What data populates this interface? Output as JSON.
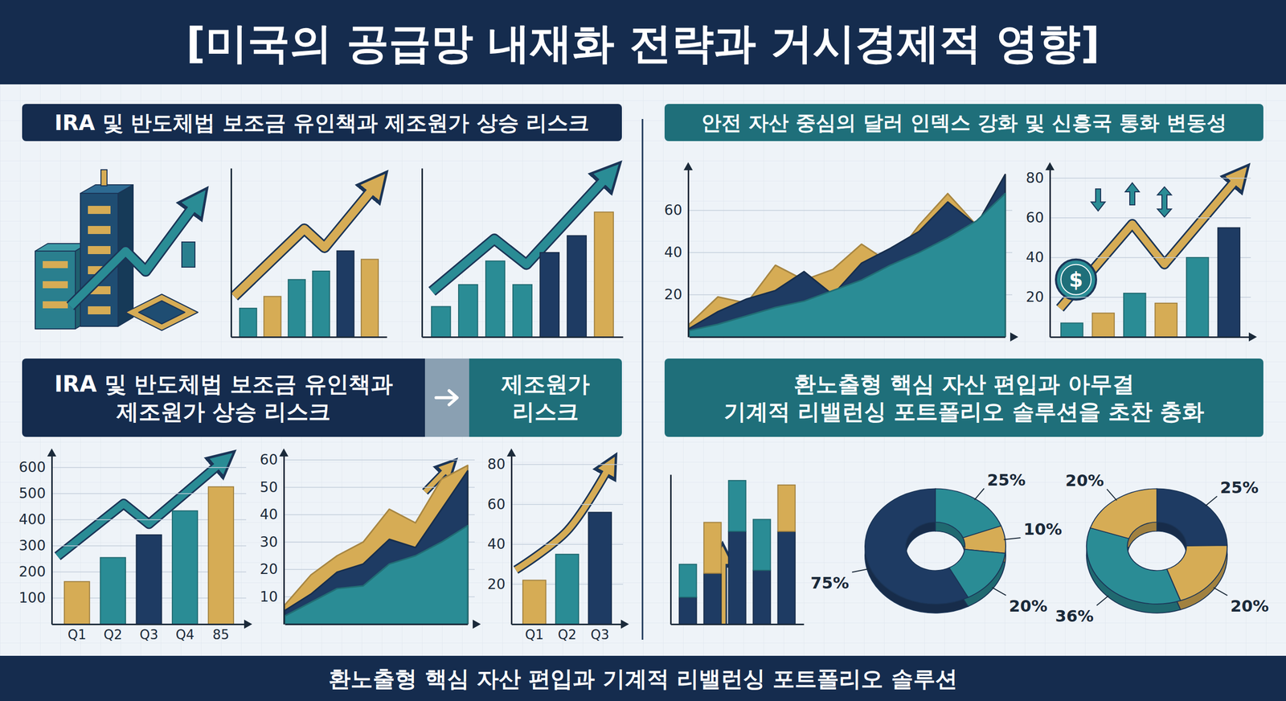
{
  "title": "[미국의 공급망 내재화 전략과 거시경제적 영향]",
  "headers": {
    "top_left": "IRA 및 반도체법 보조금 유인책과 제조원가 상승 리스크",
    "top_right": "안전 자산 중심의 달러 인덱스 강화 및 신흥국 통화 변동성",
    "mid_left": [
      "IRA 및 반도체법 보조금 유인책과",
      "제조원가 상승 리스크"
    ],
    "mid_left_tag": [
      "제조원가",
      "리스크"
    ],
    "mid_right": [
      "환노출형 핵심 자산 편입과 아무결",
      "기계적 리밸런싱 포트폴리오 솔루션을 초찬 충화"
    ]
  },
  "footer": "환노출형 핵심 자산 편입과 기계적 리밸런싱 포트폴리오 솔루션",
  "chart_data": [
    {
      "type": "bar",
      "categories": [
        null,
        null,
        null,
        null,
        null,
        null
      ],
      "values": [
        17,
        24,
        34,
        39,
        51,
        46
      ],
      "colors": [
        "#2a8c95",
        "#d6ac55",
        "#2a8c95",
        "#2a8c95",
        "#1e3b63",
        "#d6ac55"
      ],
      "ylim": [
        0,
        100
      ],
      "tick_labels": false
    },
    {
      "type": "bar",
      "categories": [
        null,
        null,
        null,
        null,
        null,
        null,
        null
      ],
      "values": [
        18,
        31,
        45,
        31,
        50,
        60,
        74
      ],
      "colors": [
        "#2a8c95",
        "#2a8c95",
        "#2a8c95",
        "#2a8c95",
        "#1e3b63",
        "#1e3b63",
        "#d6ac55"
      ],
      "ylim": [
        0,
        100
      ],
      "tick_labels": false
    },
    {
      "type": "area",
      "categories": [
        null,
        null,
        null,
        null,
        null,
        null,
        null,
        null,
        null,
        null,
        null,
        null
      ],
      "series": [
        {
          "color": "#d6ac55",
          "values": [
            6,
            19,
            16,
            34,
            27,
            32,
            44,
            35,
            53,
            68,
            53,
            77
          ]
        },
        {
          "color": "#1e3b63",
          "values": [
            4,
            12,
            18,
            22,
            31,
            20,
            35,
            42,
            50,
            64,
            53,
            77
          ]
        },
        {
          "color": "#2a8c95",
          "values": [
            3,
            6,
            10,
            14,
            17,
            22,
            27,
            34,
            40,
            47,
            55,
            68
          ]
        }
      ],
      "ylim": [
        0,
        80
      ],
      "yticks": [
        20,
        40,
        60
      ],
      "grid": true,
      "tick_labels": "y"
    },
    {
      "type": "bar",
      "categories": [
        null,
        null,
        null,
        null,
        null,
        null
      ],
      "values": [
        7,
        12,
        22,
        17,
        40,
        55
      ],
      "colors": [
        "#2a8c95",
        "#d6ac55",
        "#2a8c95",
        "#d6ac55",
        "#2a8c95",
        "#1e3b63"
      ],
      "ylim": [
        0,
        85
      ],
      "yticks": [
        20,
        40,
        60,
        80
      ],
      "grid": true,
      "tick_labels": "y",
      "annotations": [
        "$"
      ]
    },
    {
      "type": "bar",
      "categories": [
        "Q1",
        "Q2",
        "Q3",
        "Q4",
        "85"
      ],
      "values": [
        163,
        255,
        342,
        434,
        526
      ],
      "colors": [
        "#d6ac55",
        "#2a8c95",
        "#1e3b63",
        "#2a8c95",
        "#d6ac55"
      ],
      "ylim": [
        0,
        650
      ],
      "yticks": [
        100,
        200,
        300,
        400,
        500,
        600
      ],
      "grid": true
    },
    {
      "type": "area",
      "categories": [
        null,
        null,
        null,
        null,
        null,
        null,
        null,
        null
      ],
      "series": [
        {
          "color": "#d6ac55",
          "values": [
            7,
            18,
            25,
            30,
            42,
            37,
            53,
            58
          ]
        },
        {
          "color": "#1e3b63",
          "values": [
            5,
            11,
            19,
            22,
            31,
            28,
            42,
            56
          ]
        },
        {
          "color": "#2a8c95",
          "values": [
            3,
            8,
            13,
            14,
            22,
            25,
            30,
            36
          ]
        }
      ],
      "ylim": [
        0,
        62
      ],
      "yticks": [
        10,
        20,
        30,
        40,
        50,
        60
      ],
      "grid": true,
      "tick_labels": "y"
    },
    {
      "type": "bar",
      "categories": [
        "Q1",
        "Q2",
        "Q3"
      ],
      "values": [
        22,
        35,
        56
      ],
      "colors": [
        "#d6ac55",
        "#2a8c95",
        "#1e3b63"
      ],
      "ylim": [
        0,
        85
      ],
      "yticks": [
        20,
        40,
        60,
        80
      ],
      "grid": true
    },
    {
      "type": "bar",
      "stacked": true,
      "categories": [
        null,
        null,
        null,
        null,
        null
      ],
      "series": [
        {
          "color": "#1e3b63",
          "values": [
            18,
            34,
            62,
            36,
            62
          ]
        },
        {
          "colors": [
            "#2a8c95",
            "#d6ac55",
            "#2a8c95",
            "#2a8c95",
            "#d6ac55"
          ],
          "values": [
            22,
            34,
            34,
            34,
            31
          ]
        }
      ],
      "ylim": [
        0,
        100
      ],
      "tick_labels": false
    },
    {
      "type": "donut",
      "values": [
        25,
        10,
        20,
        75
      ],
      "value_labels": [
        "25%",
        "10%",
        "20%",
        "75%"
      ],
      "colors": [
        "#2a8c95",
        "#d6ac55",
        "#2a8c95",
        "#1e3b63"
      ],
      "data_labels": true
    },
    {
      "type": "donut",
      "values": [
        25,
        20,
        36,
        20
      ],
      "value_labels": [
        "25%",
        "20%",
        "36%",
        "20%"
      ],
      "colors": [
        "#1e3b63",
        "#d6ac55",
        "#2a8c95",
        "#d6ac55"
      ],
      "data_labels": true
    }
  ]
}
